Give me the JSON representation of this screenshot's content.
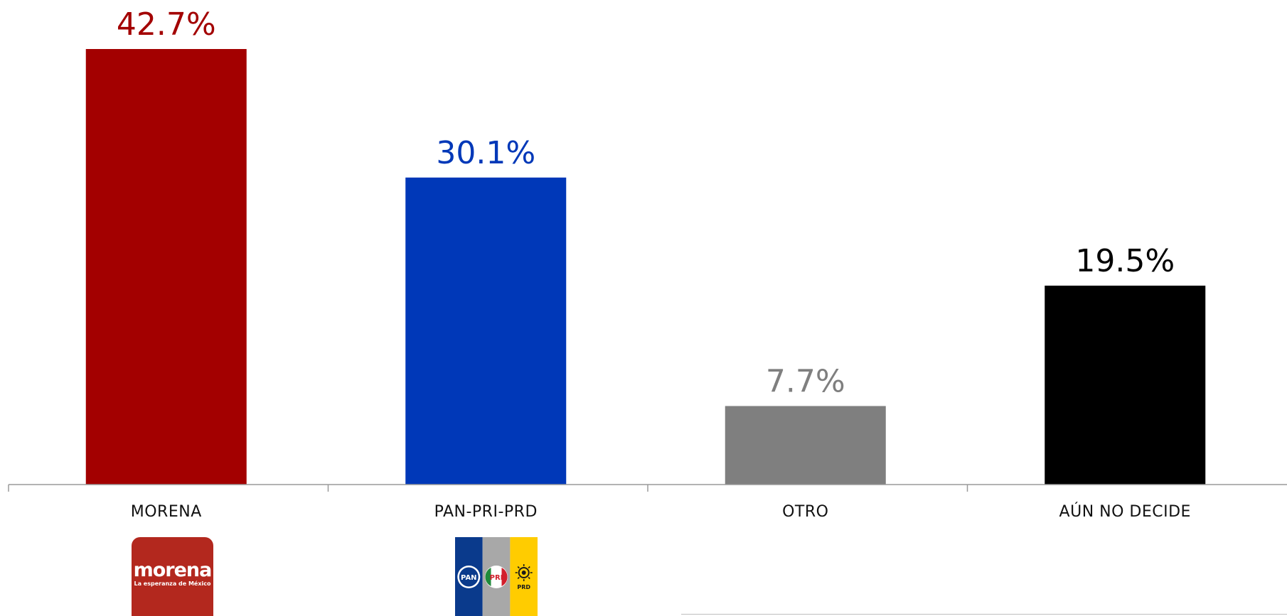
{
  "chart_data": {
    "type": "bar",
    "categories": [
      "MORENA",
      "PAN-PRI-PRD",
      "OTRO",
      "AÚN NO DECIDE"
    ],
    "values": [
      42.7,
      30.1,
      7.7,
      19.5
    ],
    "value_labels": [
      "42.7%",
      "30.1%",
      "7.7%",
      "19.5%"
    ],
    "colors": [
      "#a30000",
      "#0038b8",
      "#7f7f7f",
      "#000000"
    ],
    "label_colors": [
      "#a30000",
      "#0038b8",
      "#7f7f7f",
      "#000000"
    ],
    "ylim": [
      0,
      42.7
    ],
    "grid": false,
    "legend": "none",
    "title": "",
    "xlabel": "",
    "ylabel": ""
  },
  "logos": {
    "morena": {
      "word": "morena",
      "tagline": "La esperanza de México",
      "color": "#b3281e"
    },
    "coalition": {
      "pan_text": "PAN",
      "pri_text": "PRI",
      "prd_text": "PRD",
      "colors": [
        "#0a3a8c",
        "#a8a8a8",
        "#ffcc00"
      ]
    }
  }
}
